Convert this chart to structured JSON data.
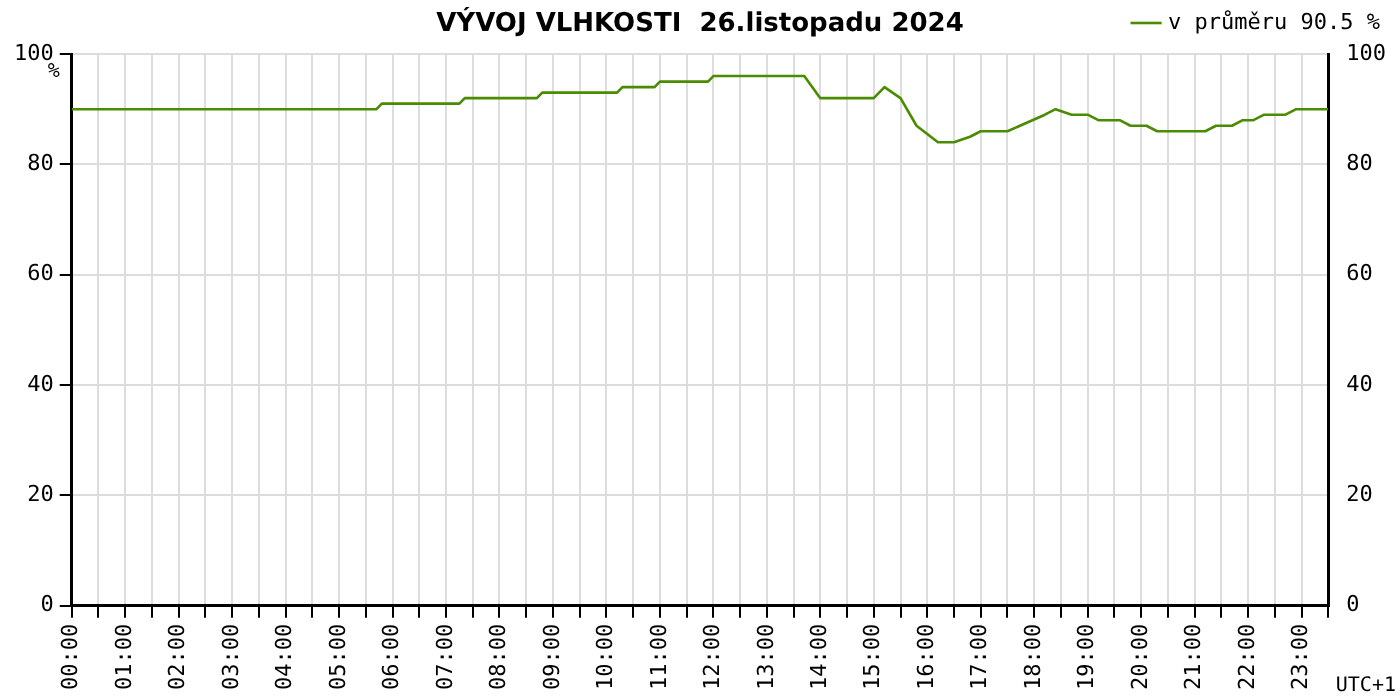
{
  "chart_data": {
    "type": "line",
    "title": "VÝVOJ VLHKOSTI  26.listopadu 2024",
    "ylabel": "%",
    "annotations": [
      "UTC+1"
    ],
    "series": [
      {
        "name": "v průměru 90.5 %",
        "color": "#4a8c00",
        "x": [
          0,
          5.7,
          5.8,
          7.25,
          7.35,
          8.7,
          8.8,
          10.2,
          10.3,
          10.9,
          11.0,
          11.9,
          12.0,
          13.7,
          14.0,
          15.0,
          15.2,
          15.5,
          15.8,
          16.2,
          16.5,
          16.8,
          17.0,
          17.5,
          18.2,
          18.4,
          18.7,
          19.0,
          19.2,
          19.6,
          19.8,
          20.1,
          20.3,
          21.2,
          21.4,
          21.7,
          21.9,
          22.1,
          22.3,
          22.7,
          22.9,
          23.5
        ],
        "values": [
          90,
          90,
          91,
          91,
          92,
          92,
          93,
          93,
          94,
          94,
          95,
          95,
          96,
          96,
          92,
          92,
          94,
          92,
          87,
          84,
          84,
          85,
          86,
          86,
          89,
          90,
          89,
          89,
          88,
          88,
          87,
          87,
          86,
          86,
          87,
          87,
          88,
          88,
          89,
          89,
          90,
          90
        ]
      }
    ],
    "xlim": [
      0,
      23.5
    ],
    "xticks": [
      {
        "value": 0,
        "label": "00:00"
      },
      {
        "value": 0.5,
        "label": null
      },
      {
        "value": 1,
        "label": "01:00"
      },
      {
        "value": 1.5,
        "label": null
      },
      {
        "value": 2,
        "label": "02:00"
      },
      {
        "value": 2.5,
        "label": null
      },
      {
        "value": 3,
        "label": "03:00"
      },
      {
        "value": 3.5,
        "label": null
      },
      {
        "value": 4,
        "label": "04:00"
      },
      {
        "value": 4.5,
        "label": null
      },
      {
        "value": 5,
        "label": "05:00"
      },
      {
        "value": 5.5,
        "label": null
      },
      {
        "value": 6,
        "label": "06:00"
      },
      {
        "value": 6.5,
        "label": null
      },
      {
        "value": 7,
        "label": "07:00"
      },
      {
        "value": 7.5,
        "label": null
      },
      {
        "value": 8,
        "label": "08:00"
      },
      {
        "value": 8.5,
        "label": null
      },
      {
        "value": 9,
        "label": "09:00"
      },
      {
        "value": 9.5,
        "label": null
      },
      {
        "value": 10,
        "label": "10:00"
      },
      {
        "value": 10.5,
        "label": null
      },
      {
        "value": 11,
        "label": "11:00"
      },
      {
        "value": 11.5,
        "label": null
      },
      {
        "value": 12,
        "label": "12:00"
      },
      {
        "value": 12.5,
        "label": null
      },
      {
        "value": 13,
        "label": "13:00"
      },
      {
        "value": 13.5,
        "label": null
      },
      {
        "value": 14,
        "label": "14:00"
      },
      {
        "value": 14.5,
        "label": null
      },
      {
        "value": 15,
        "label": "15:00"
      },
      {
        "value": 15.5,
        "label": null
      },
      {
        "value": 16,
        "label": "16:00"
      },
      {
        "value": 16.5,
        "label": null
      },
      {
        "value": 17,
        "label": "17:00"
      },
      {
        "value": 17.5,
        "label": null
      },
      {
        "value": 18,
        "label": "18:00"
      },
      {
        "value": 18.5,
        "label": null
      },
      {
        "value": 19,
        "label": "19:00"
      },
      {
        "value": 19.5,
        "label": null
      },
      {
        "value": 20,
        "label": "20:00"
      },
      {
        "value": 20.5,
        "label": null
      },
      {
        "value": 21,
        "label": "21:00"
      },
      {
        "value": 21.5,
        "label": null
      },
      {
        "value": 22,
        "label": "22:00"
      },
      {
        "value": 22.5,
        "label": null
      },
      {
        "value": 23,
        "label": "23:00"
      },
      {
        "value": 23.5,
        "label": null
      }
    ],
    "ylim": [
      0,
      100
    ],
    "yticks": [
      0,
      20,
      40,
      60,
      80,
      100
    ],
    "y2lim": [
      0,
      100
    ],
    "y2ticks": [
      0,
      20,
      40,
      60,
      80,
      100
    ],
    "grid": true,
    "legend": "top right",
    "marker": "none",
    "line_style": "solid"
  }
}
